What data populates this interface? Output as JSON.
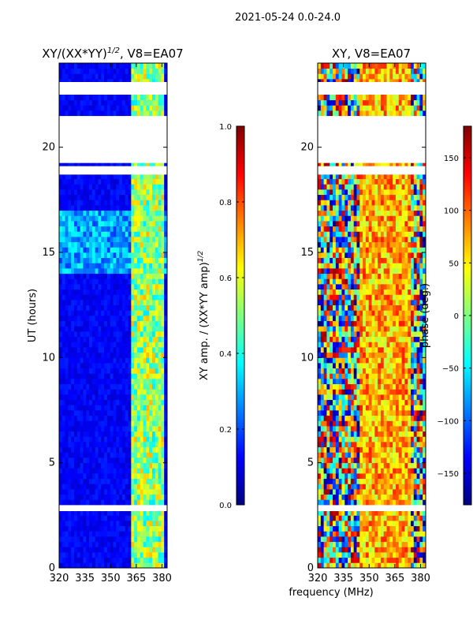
{
  "chart_data": {
    "type": "heatmap",
    "suptitle": "2021-05-24 0.0-24.0",
    "shared_xlabel": "frequency (MHz)",
    "panels": [
      {
        "id": "amp",
        "title": "XY/(XX*YY)",
        "title_superscript": "1/2",
        "title_suffix": ", V8=EA07",
        "ylabel": "UT (hours)",
        "xlim": [
          320,
          383
        ],
        "ylim": [
          0,
          24
        ],
        "xticks": [
          320,
          335,
          350,
          365,
          380
        ],
        "yticks": [
          0,
          5,
          10,
          15,
          20
        ],
        "colorbar": {
          "label": "XY amp. / (XX*YY amp)",
          "label_superscript": "1/2",
          "range": [
            0.0,
            1.0
          ],
          "ticks": [
            0.0,
            0.2,
            0.4,
            0.6,
            0.8,
            1.0
          ],
          "tick_labels": [
            "0.0",
            "0.2",
            "0.4",
            "0.6",
            "0.8",
            "1.0"
          ]
        }
      },
      {
        "id": "phase",
        "title": "XY, V8=EA07",
        "ylabel": "",
        "xlim": [
          320,
          383
        ],
        "ylim": [
          0,
          24
        ],
        "xticks": [
          320,
          335,
          350,
          365,
          380
        ],
        "yticks": [
          0,
          5,
          10,
          15,
          20
        ],
        "colorbar": {
          "label": "phase (deg.)",
          "range": [
            -180,
            180
          ],
          "ticks": [
            -150,
            -100,
            -50,
            0,
            50,
            100,
            150
          ],
          "tick_labels": [
            "−150",
            "−100",
            "−50",
            "0",
            "50",
            "100",
            "150"
          ]
        }
      }
    ],
    "data_gaps_hours": [
      [
        18.7,
        19.1
      ],
      [
        19.3,
        21.4
      ],
      [
        22.6,
        23.1
      ],
      [
        2.7,
        2.9
      ]
    ],
    "amp_bright_band_mhz": [
      362,
      382
    ],
    "colormap": "jet"
  }
}
